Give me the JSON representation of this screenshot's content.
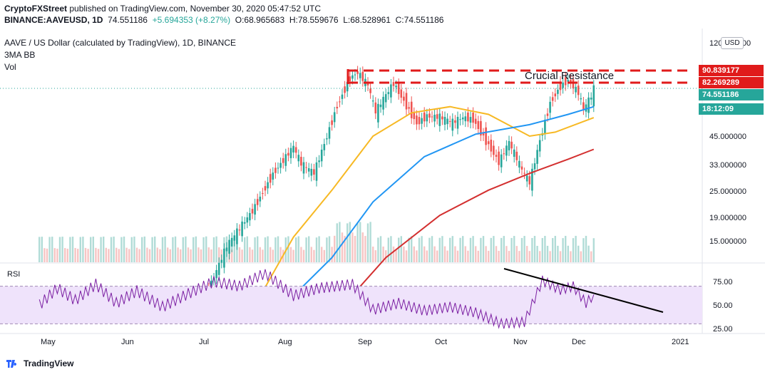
{
  "header": {
    "publisher": "CryptoFXStreet",
    "published_text": " published on TradingView.com, November 30, 2020 05:47:52 UTC",
    "symbol": "BINANCE:AAVEUSD, 1D",
    "last": "74.551186",
    "change": "+5.694353 (+8.27%)",
    "ohlc_o": "O:68.965683",
    "ohlc_h": "H:78.559676",
    "ohlc_l": "L:68.528961",
    "ohlc_c": "C:74.551186",
    "title": "AAVE / US Dollar (calculated by TradingView), 1D, BINANCE",
    "indicator": "3MA BB",
    "vol_label": "Vol",
    "rsi_label": "RSI"
  },
  "currency_button": "USD",
  "price_tags": {
    "resistance_high": "90.839177",
    "resistance_low": "82.269289",
    "last_price": "74.551186",
    "countdown": "18:12:09"
  },
  "annotation": "Crucial Resistance",
  "branding": "TradingView",
  "colors": {
    "up": "#26a69a",
    "down": "#ef5350",
    "ma_fast": "#f7b924",
    "ma_mid": "#2196f3",
    "ma_slow": "#d32f2f",
    "resistance": "#e01b1b",
    "rsi": "#7b1fa2",
    "rsi_band": "#efe3fb"
  },
  "chart_data": [
    {
      "type": "candlestick",
      "title": "AAVE / US Dollar (calculated by TradingView), 1D, BINANCE",
      "y_scale": "log",
      "y_ticks": [
        "120.000000",
        "45.000000",
        "33.000000",
        "25.000000",
        "19.000000",
        "15.000000"
      ],
      "x_ticks": [
        "May",
        "Jun",
        "Jul",
        "Aug",
        "Sep",
        "Oct",
        "Nov",
        "Dec",
        "2021"
      ],
      "resistance_levels": [
        90.839177,
        82.269289
      ],
      "last_close": 74.551186,
      "close_path": [
        {
          "date": "2020-07-01",
          "close": 7.5
        },
        {
          "date": "2020-07-10",
          "close": 13.5
        },
        {
          "date": "2020-07-20",
          "close": 20
        },
        {
          "date": "2020-07-28",
          "close": 30
        },
        {
          "date": "2020-08-05",
          "close": 40
        },
        {
          "date": "2020-08-08",
          "close": 33
        },
        {
          "date": "2020-08-13",
          "close": 30
        },
        {
          "date": "2020-08-18",
          "close": 45
        },
        {
          "date": "2020-08-22",
          "close": 63
        },
        {
          "date": "2020-08-27",
          "close": 85
        },
        {
          "date": "2020-08-30",
          "close": 90
        },
        {
          "date": "2020-09-03",
          "close": 78
        },
        {
          "date": "2020-09-06",
          "close": 58
        },
        {
          "date": "2020-09-09",
          "close": 67
        },
        {
          "date": "2020-09-13",
          "close": 80
        },
        {
          "date": "2020-09-18",
          "close": 63
        },
        {
          "date": "2020-09-22",
          "close": 52
        },
        {
          "date": "2020-09-26",
          "close": 56
        },
        {
          "date": "2020-10-01",
          "close": 55
        },
        {
          "date": "2020-10-06",
          "close": 52
        },
        {
          "date": "2020-10-10",
          "close": 55
        },
        {
          "date": "2020-10-14",
          "close": 54
        },
        {
          "date": "2020-10-19",
          "close": 43
        },
        {
          "date": "2020-10-24",
          "close": 34
        },
        {
          "date": "2020-10-28",
          "close": 42
        },
        {
          "date": "2020-11-02",
          "close": 31
        },
        {
          "date": "2020-11-05",
          "close": 27
        },
        {
          "date": "2020-11-09",
          "close": 43
        },
        {
          "date": "2020-11-13",
          "close": 65
        },
        {
          "date": "2020-11-17",
          "close": 78
        },
        {
          "date": "2020-11-20",
          "close": 83
        },
        {
          "date": "2020-11-24",
          "close": 72
        },
        {
          "date": "2020-11-26",
          "close": 60
        },
        {
          "date": "2020-11-29",
          "close": 69
        },
        {
          "date": "2020-11-30",
          "close": 74.55
        }
      ],
      "series": [
        {
          "name": "MA fast",
          "color": "#f7b924",
          "points": [
            {
              "date": "2020-07-22",
              "value": 7.5
            },
            {
              "date": "2020-08-05",
              "value": 15
            },
            {
              "date": "2020-08-20",
              "value": 25
            },
            {
              "date": "2020-09-05",
              "value": 45
            },
            {
              "date": "2020-09-20",
              "value": 58
            },
            {
              "date": "2020-10-05",
              "value": 62
            },
            {
              "date": "2020-10-20",
              "value": 57
            },
            {
              "date": "2020-11-05",
              "value": 45
            },
            {
              "date": "2020-11-15",
              "value": 47
            },
            {
              "date": "2020-11-30",
              "value": 55
            }
          ]
        },
        {
          "name": "MA mid",
          "color": "#2196f3",
          "points": [
            {
              "date": "2020-08-03",
              "value": 7.5
            },
            {
              "date": "2020-08-20",
              "value": 12
            },
            {
              "date": "2020-09-05",
              "value": 22
            },
            {
              "date": "2020-09-25",
              "value": 36
            },
            {
              "date": "2020-10-15",
              "value": 46
            },
            {
              "date": "2020-11-05",
              "value": 51
            },
            {
              "date": "2020-11-20",
              "value": 57
            },
            {
              "date": "2020-11-30",
              "value": 62
            }
          ]
        },
        {
          "name": "MA slow",
          "color": "#d32f2f",
          "points": [
            {
              "date": "2020-08-26",
              "value": 7.5
            },
            {
              "date": "2020-09-10",
              "value": 12
            },
            {
              "date": "2020-10-01",
              "value": 19
            },
            {
              "date": "2020-10-20",
              "value": 25
            },
            {
              "date": "2020-11-05",
              "value": 30
            },
            {
              "date": "2020-11-20",
              "value": 35
            },
            {
              "date": "2020-11-30",
              "value": 39
            }
          ]
        }
      ]
    },
    {
      "type": "line",
      "title": "RSI",
      "y_ticks": [
        "75.00",
        "50.00",
        "25.00"
      ],
      "bands": [
        70,
        30
      ],
      "values": [
        {
          "date": "2020-04-28",
          "rsi": 50
        },
        {
          "date": "2020-05-05",
          "rsi": 68
        },
        {
          "date": "2020-05-12",
          "rsi": 55
        },
        {
          "date": "2020-05-20",
          "rsi": 72
        },
        {
          "date": "2020-05-28",
          "rsi": 52
        },
        {
          "date": "2020-06-05",
          "rsi": 65
        },
        {
          "date": "2020-06-15",
          "rsi": 48
        },
        {
          "date": "2020-06-25",
          "rsi": 62
        },
        {
          "date": "2020-07-05",
          "rsi": 75
        },
        {
          "date": "2020-07-15",
          "rsi": 70
        },
        {
          "date": "2020-07-25",
          "rsi": 84
        },
        {
          "date": "2020-08-05",
          "rsi": 60
        },
        {
          "date": "2020-08-15",
          "rsi": 68
        },
        {
          "date": "2020-08-28",
          "rsi": 72
        },
        {
          "date": "2020-09-05",
          "rsi": 45
        },
        {
          "date": "2020-09-15",
          "rsi": 52
        },
        {
          "date": "2020-09-25",
          "rsi": 44
        },
        {
          "date": "2020-10-05",
          "rsi": 48
        },
        {
          "date": "2020-10-15",
          "rsi": 42
        },
        {
          "date": "2020-10-25",
          "rsi": 30
        },
        {
          "date": "2020-11-03",
          "rsi": 32
        },
        {
          "date": "2020-11-10",
          "rsi": 76
        },
        {
          "date": "2020-11-17",
          "rsi": 66
        },
        {
          "date": "2020-11-22",
          "rsi": 70
        },
        {
          "date": "2020-11-27",
          "rsi": 52
        },
        {
          "date": "2020-11-30",
          "rsi": 61
        }
      ],
      "trendline": [
        {
          "date": "2020-10-28",
          "rsi": 90
        },
        {
          "date": "2020-12-30",
          "rsi": 40
        }
      ]
    }
  ]
}
